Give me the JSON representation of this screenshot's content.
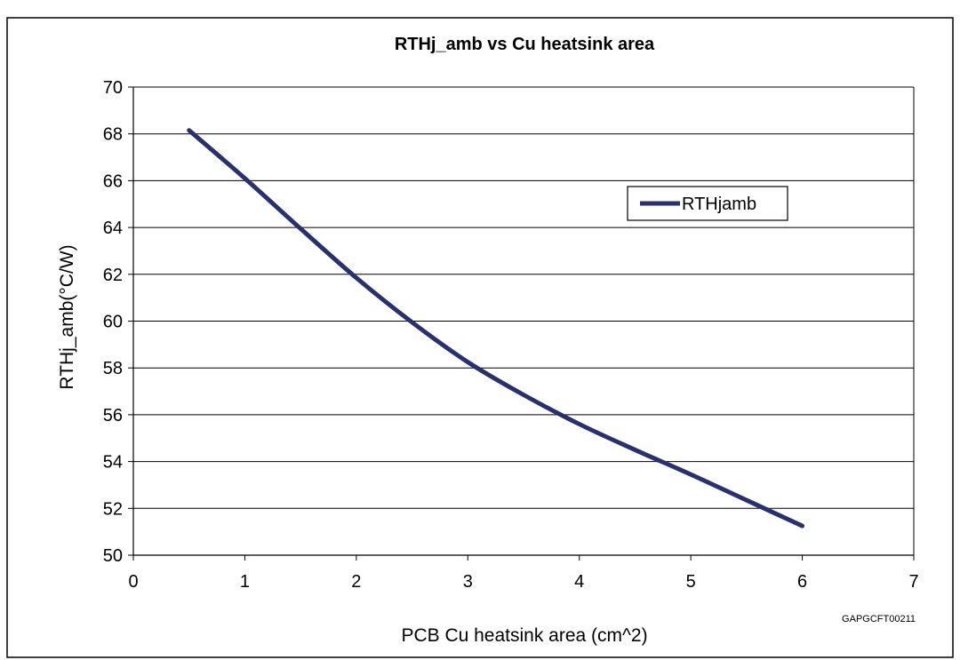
{
  "figure_caption": "",
  "figure_code": "GAPGCFT00211",
  "chart_data": {
    "type": "line",
    "title": "RTHj_amb vs Cu heatsink area",
    "xlabel": "PCB Cu heatsink area (cm^2)",
    "ylabel": "RTHj_amb(°C/W)",
    "xlim": [
      0,
      7
    ],
    "ylim": [
      50,
      70
    ],
    "xticks": [
      0,
      1,
      2,
      3,
      4,
      5,
      6,
      7
    ],
    "yticks": [
      50,
      52,
      54,
      56,
      58,
      60,
      62,
      64,
      66,
      68,
      70
    ],
    "grid": "horizontal",
    "legend_position": "top-right",
    "series": [
      {
        "name": "RTHjamb",
        "color": "#29306b",
        "x": [
          0.5,
          1,
          1.5,
          2,
          2.5,
          3,
          3.5,
          4,
          4.5,
          5,
          5.5,
          6
        ],
        "y": [
          68.15,
          66.1,
          63.95,
          61.85,
          59.95,
          58.25,
          56.85,
          55.6,
          54.5,
          53.45,
          52.35,
          51.25
        ]
      }
    ]
  }
}
